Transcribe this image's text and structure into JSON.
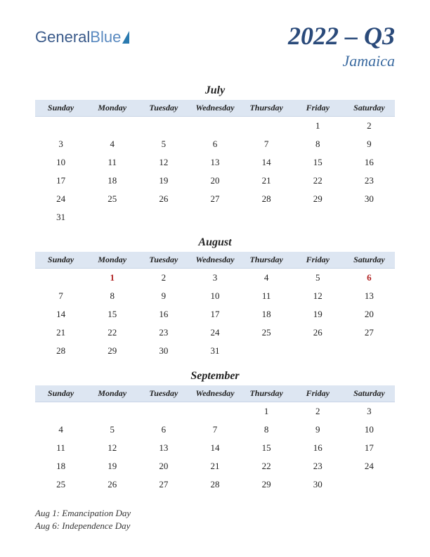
{
  "logo": {
    "part1": "General",
    "part2": "Blue"
  },
  "title": {
    "main": "2022 – Q3",
    "sub": "Jamaica"
  },
  "colors": {
    "header_bg": "#dde6f2",
    "title_color": "#2a4a7a",
    "subtitle_color": "#3a6aa0",
    "holiday_color": "#b02020"
  },
  "day_headers": [
    "Sunday",
    "Monday",
    "Tuesday",
    "Wednesday",
    "Thursday",
    "Friday",
    "Saturday"
  ],
  "months": [
    {
      "name": "July",
      "weeks": [
        [
          "",
          "",
          "",
          "",
          "",
          "1",
          "2"
        ],
        [
          "3",
          "4",
          "5",
          "6",
          "7",
          "8",
          "9"
        ],
        [
          "10",
          "11",
          "12",
          "13",
          "14",
          "15",
          "16"
        ],
        [
          "17",
          "18",
          "19",
          "20",
          "21",
          "22",
          "23"
        ],
        [
          "24",
          "25",
          "26",
          "27",
          "28",
          "29",
          "30"
        ],
        [
          "31",
          "",
          "",
          "",
          "",
          "",
          ""
        ]
      ],
      "holidays": []
    },
    {
      "name": "August",
      "weeks": [
        [
          "",
          "1",
          "2",
          "3",
          "4",
          "5",
          "6"
        ],
        [
          "7",
          "8",
          "9",
          "10",
          "11",
          "12",
          "13"
        ],
        [
          "14",
          "15",
          "16",
          "17",
          "18",
          "19",
          "20"
        ],
        [
          "21",
          "22",
          "23",
          "24",
          "25",
          "26",
          "27"
        ],
        [
          "28",
          "29",
          "30",
          "31",
          "",
          "",
          ""
        ]
      ],
      "holidays": [
        "1",
        "6"
      ]
    },
    {
      "name": "September",
      "weeks": [
        [
          "",
          "",
          "",
          "",
          "1",
          "2",
          "3"
        ],
        [
          "4",
          "5",
          "6",
          "7",
          "8",
          "9",
          "10"
        ],
        [
          "11",
          "12",
          "13",
          "14",
          "15",
          "16",
          "17"
        ],
        [
          "18",
          "19",
          "20",
          "21",
          "22",
          "23",
          "24"
        ],
        [
          "25",
          "26",
          "27",
          "28",
          "29",
          "30",
          ""
        ]
      ],
      "holidays": []
    }
  ],
  "holiday_notes": [
    "Aug 1: Emancipation Day",
    "Aug 6: Independence Day"
  ]
}
